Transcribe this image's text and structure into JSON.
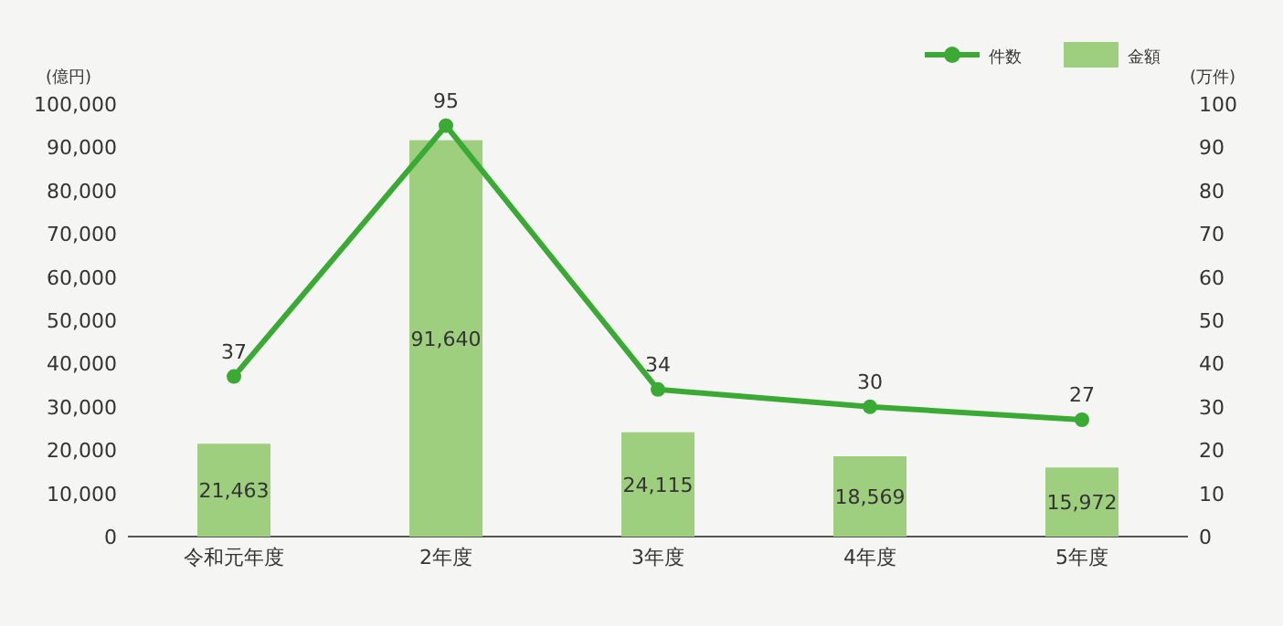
{
  "chart_data": {
    "type": "bar",
    "categories": [
      "令和元年度",
      "2年度",
      "3年度",
      "4年度",
      "5年度"
    ],
    "ylabel": "(億円)",
    "y2label": "(万件)",
    "series": [
      {
        "name": "金額",
        "color": "#9ecf7f",
        "values": [
          21463,
          91640,
          24115,
          18569,
          15972
        ],
        "value_labels": [
          "21,463",
          "91,640",
          "24,115",
          "18,569",
          "15,972"
        ]
      },
      {
        "name": "件数",
        "type": "line",
        "axis": "y2",
        "color": "#3aaa35",
        "values": [
          37,
          95,
          34,
          30,
          27
        ]
      }
    ],
    "ylim": [
      0,
      100000
    ],
    "yticks": [
      0,
      {
        "value": 10000,
        "label": "10,000"
      },
      {
        "value": 20000,
        "label": "20,000"
      },
      {
        "value": 30000,
        "label": "30,000"
      },
      {
        "value": 40000,
        "label": "40,000"
      },
      {
        "value": 50000,
        "label": "50,000"
      },
      {
        "value": 60000,
        "label": "60,000"
      },
      {
        "value": 70000,
        "label": "70,000"
      },
      {
        "value": 80000,
        "label": "80,000"
      },
      {
        "value": 90000,
        "label": "90,000"
      },
      {
        "value": 100000,
        "label": "100,000"
      }
    ],
    "y2lim": [
      0,
      100
    ],
    "y2ticks": [
      0,
      10,
      20,
      30,
      40,
      50,
      60,
      70,
      80,
      90,
      100
    ],
    "data_labels": true,
    "legend": "top right",
    "grid": false,
    "marker": "circle",
    "line_style": "solid"
  }
}
